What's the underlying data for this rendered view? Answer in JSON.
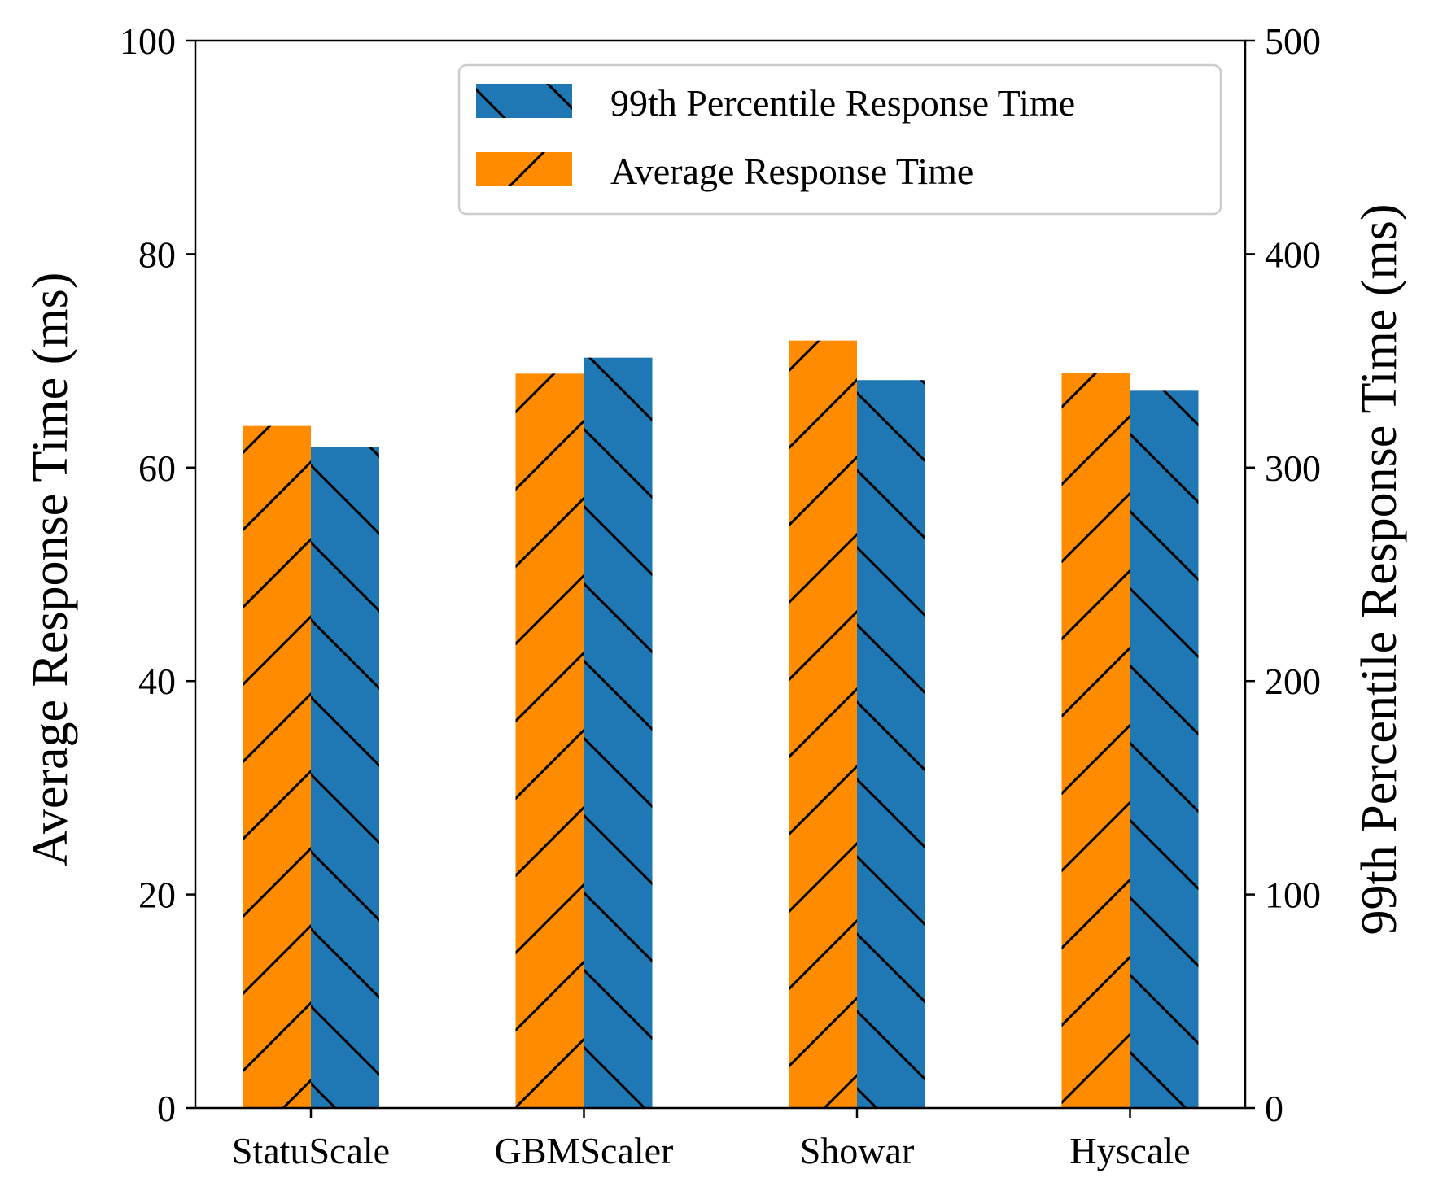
{
  "chart_data": {
    "type": "bar",
    "categories": [
      "StatuScale",
      "GBMScaler",
      "Showar",
      "Hyscale"
    ],
    "series": [
      {
        "name": "Average Response Time",
        "axis": "left",
        "values": [
          63.9,
          68.8,
          71.9,
          68.9
        ],
        "color": "#ff8c00",
        "hatch": "forward-slash"
      },
      {
        "name": "99th Percentile Response Time",
        "axis": "right",
        "values": [
          309.5,
          351.5,
          341,
          336
        ],
        "color": "#1f77b4",
        "hatch": "back-slash"
      }
    ],
    "ylabel_left": "Average Response Time (ms)",
    "ylabel_right": "99th Percentile Response Time (ms)",
    "ylim_left": [
      0,
      100
    ],
    "ylim_right": [
      0,
      500
    ],
    "yticks_left": [
      "0",
      "20",
      "40",
      "60",
      "80",
      "100"
    ],
    "yticks_right": [
      "0",
      "100",
      "200",
      "300",
      "400",
      "500"
    ],
    "legend": {
      "position": "top-right",
      "entries": [
        "99th Percentile Response Time",
        "Average Response Time"
      ]
    },
    "grid": false
  }
}
